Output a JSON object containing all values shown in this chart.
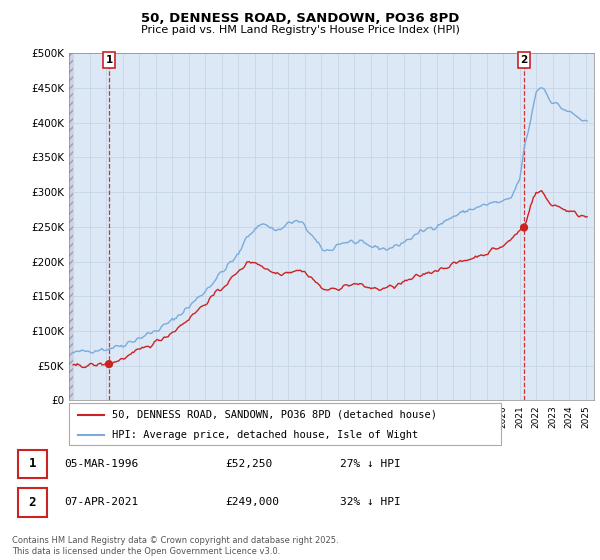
{
  "title": "50, DENNESS ROAD, SANDOWN, PO36 8PD",
  "subtitle": "Price paid vs. HM Land Registry's House Price Index (HPI)",
  "hpi_label": "HPI: Average price, detached house, Isle of Wight",
  "price_label": "50, DENNESS ROAD, SANDOWN, PO36 8PD (detached house)",
  "purchase1": {
    "date": "05-MAR-1996",
    "price": 52250,
    "year": 1996.17,
    "note": "27% ↓ HPI"
  },
  "purchase2": {
    "date": "07-APR-2021",
    "price": 249000,
    "year": 2021.27,
    "note": "32% ↓ HPI"
  },
  "ylim": [
    0,
    500000
  ],
  "xlim": [
    1993.75,
    2025.5
  ],
  "yticks": [
    0,
    50000,
    100000,
    150000,
    200000,
    250000,
    300000,
    350000,
    400000,
    450000,
    500000
  ],
  "ytick_labels": [
    "£0",
    "£50K",
    "£100K",
    "£150K",
    "£200K",
    "£250K",
    "£300K",
    "£350K",
    "£400K",
    "£450K",
    "£500K"
  ],
  "hpi_color": "#7aabdb",
  "price_color": "#cc2222",
  "vline_color": "#cc2222",
  "grid_color": "#c8d8e8",
  "bg_color": "#dce8f5",
  "footnote": "Contains HM Land Registry data © Crown copyright and database right 2025.\nThis data is licensed under the Open Government Licence v3.0."
}
